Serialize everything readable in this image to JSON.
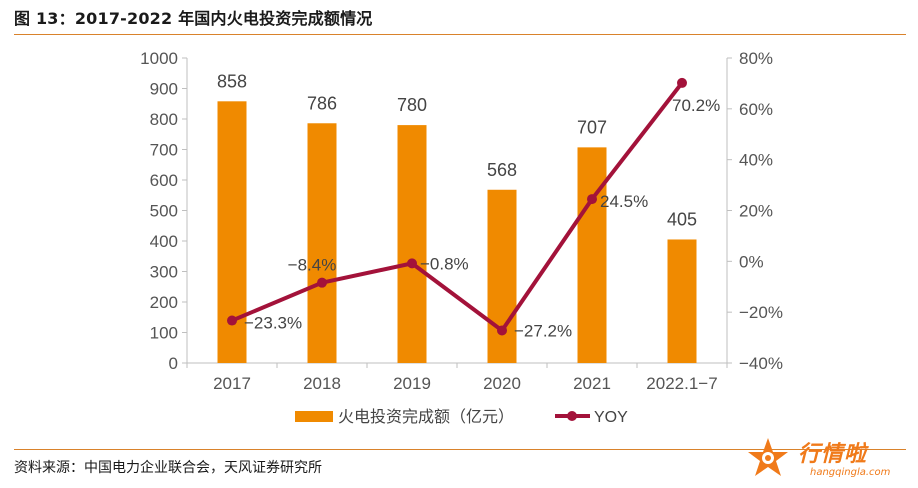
{
  "figure": {
    "title": "图 13：2017-2022 年国内火电投资完成额情况",
    "source": "资料来源：中国电力企业联合会，天风证券研究所",
    "watermark": {
      "name": "行情啦",
      "url": "hangqingla.com"
    }
  },
  "colors": {
    "bar": "#f08a00",
    "line": "#a3123a",
    "rule": "#d9822b",
    "axis": "#bfbfbf",
    "text": "#555555"
  },
  "chart_data": {
    "type": "bar+line",
    "categories": [
      "2017",
      "2018",
      "2019",
      "2020",
      "2021",
      "2022.1−7"
    ],
    "series": [
      {
        "name": "火电投资完成额（亿元）",
        "type": "bar",
        "axis": "left",
        "values": [
          858,
          786,
          780,
          568,
          707,
          405
        ],
        "labels": [
          "858",
          "786",
          "780",
          "568",
          "707",
          "405"
        ]
      },
      {
        "name": "YOY",
        "type": "line",
        "axis": "right",
        "values": [
          -23.3,
          -8.4,
          -0.8,
          -27.2,
          24.5,
          70.2
        ],
        "labels": [
          "−23.3%",
          "−8.4%",
          "−0.8%",
          "−27.2%",
          "24.5%",
          "70.2%"
        ]
      }
    ],
    "y_left": {
      "range": [
        0,
        1000
      ],
      "ticks": [
        0,
        100,
        200,
        300,
        400,
        500,
        600,
        700,
        800,
        900,
        1000
      ]
    },
    "y_right": {
      "range": [
        -40,
        80
      ],
      "ticks": [
        -40,
        -20,
        0,
        20,
        40,
        60,
        80
      ],
      "tick_labels": [
        "−40%",
        "−20%",
        "0%",
        "20%",
        "40%",
        "60%",
        "80%"
      ]
    },
    "legend": {
      "position": "bottom-center",
      "items": [
        "火电投资完成额（亿元）",
        "YOY"
      ]
    },
    "grid": false
  }
}
